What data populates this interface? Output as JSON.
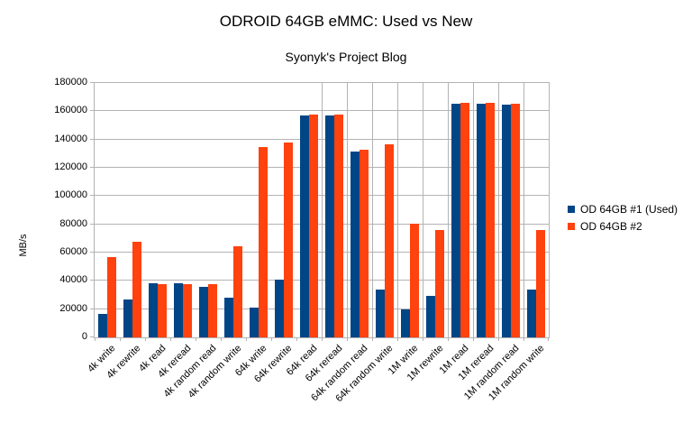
{
  "chart": {
    "title": "ODROID 64GB eMMC: Used vs New",
    "subtitle": "Syonyk's Project Blog",
    "ylabel": "MB/s"
  },
  "chart_data": {
    "type": "bar",
    "title": "ODROID 64GB eMMC: Used vs New",
    "subtitle": "Syonyk's Project Blog",
    "xlabel": "",
    "ylabel": "MB/s",
    "categories": [
      "4k write",
      "4k rewrite",
      "4k read",
      "4k reread",
      "4k random read",
      "4k random write",
      "64k write",
      "64k rewrite",
      "64k read",
      "64k reread",
      "64k random read",
      "64k random write",
      "1M write",
      "1M rewrite",
      "1M read",
      "1M reread",
      "1M random read",
      "1M random write"
    ],
    "series": [
      {
        "name": "OD 64GB #1 (Used)",
        "color": "#004586",
        "values": [
          16500,
          27000,
          38200,
          38300,
          35800,
          28200,
          21200,
          41000,
          156800,
          157100,
          131500,
          34000,
          20000,
          29700,
          165300,
          165400,
          165000,
          33600
        ]
      },
      {
        "name": "OD 64GB #2",
        "color": "#FF420E",
        "values": [
          57000,
          68000,
          37700,
          37700,
          37800,
          64800,
          134500,
          138000,
          157900,
          157900,
          133000,
          136600,
          80500,
          76000,
          166000,
          165800,
          165300,
          76200
        ]
      }
    ],
    "ylim": [
      0,
      180000
    ],
    "ytick_step": 20000,
    "yticklabels": [
      "0",
      "20000",
      "40000",
      "60000",
      "80000",
      "100000",
      "120000",
      "140000",
      "160000",
      "180000"
    ],
    "legend_position": "right",
    "grid": "horizontal major gridlines; vertical category gridlines on right half only",
    "vgrid_from_boundary": 9,
    "grid_color": "#b3b3b3",
    "background_color": "#ffffff",
    "x_label_rotation_deg": 45
  }
}
